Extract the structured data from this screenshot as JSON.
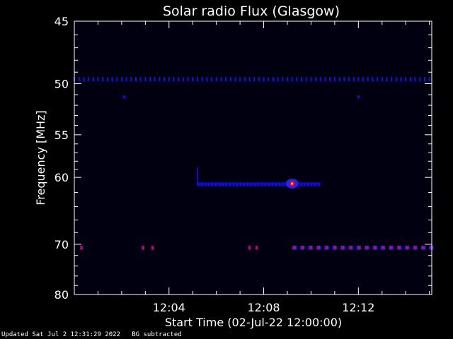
{
  "chart_data": {
    "type": "heatmap",
    "title": "Solar radio Flux (Glasgow)",
    "xlabel": "Start Time (02-Jul-22 12:00:00)",
    "ylabel": "Frequency [MHz]",
    "x_ticks": [
      {
        "minute": 4,
        "label": "12:04"
      },
      {
        "minute": 8,
        "label": "12:08"
      },
      {
        "minute": 12,
        "label": "12:12"
      }
    ],
    "y_ticks": [
      {
        "mhz": 45,
        "label": "45"
      },
      {
        "mhz": 50,
        "label": "50"
      },
      {
        "mhz": 55,
        "label": "55"
      },
      {
        "mhz": 60,
        "label": "60"
      },
      {
        "mhz": 70,
        "label": "70"
      },
      {
        "mhz": 80,
        "label": "80"
      }
    ],
    "xlim_minutes": [
      0,
      15.1
    ],
    "ylim_mhz": [
      45,
      80
    ],
    "y_scale": "inverted-log",
    "colors": {
      "background": "#000000",
      "plot_bg": "#000010",
      "low": "#1010ff",
      "mid": "#ff0000",
      "high": "#ffff60"
    },
    "features": [
      {
        "name": "interference-50MHz",
        "mhz": 49.6,
        "kind": "dotted-line",
        "start_min": 0,
        "end_min": 15.1,
        "step_min": 0.2,
        "level": "low"
      },
      {
        "name": "interference-51MHz",
        "mhz": 51.2,
        "kind": "dots",
        "points_min": [
          2.1,
          12.0
        ],
        "level": "low"
      },
      {
        "name": "burst-60.5MHz",
        "mhz": 60.9,
        "kind": "band",
        "start_min": 5.2,
        "end_min": 10.4,
        "peak_min": 9.2,
        "level": "high"
      },
      {
        "name": "interference-70.5MHz",
        "mhz": 70.6,
        "kind": "segments",
        "points_min": [
          0.3,
          2.9,
          3.3,
          7.4,
          7.7
        ],
        "band_start_min": 9.3,
        "band_end_min": 15.1,
        "level": "mid"
      }
    ]
  },
  "footer": {
    "updated": "Updated Sat Jul  2 12:31:29 2022",
    "note": "BG subtracted"
  }
}
